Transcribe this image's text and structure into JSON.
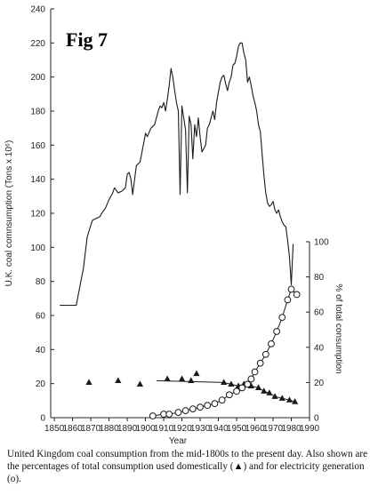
{
  "figure_label": "Fig 7",
  "caption": "United Kingdom coal consumption from the mid-1800s to the present day.  Also shown are the percentages of total consumption used domestically (▲) and for electricity generation (o).",
  "chart_data": {
    "type": "line",
    "xlabel": "Year",
    "ylabel": "U.K. coal comnsumption (Tons x 10⁶)",
    "y2label": "% of total consumption",
    "xlim": [
      1848,
      1990
    ],
    "ylim": [
      0,
      240
    ],
    "y2lim": [
      0,
      100
    ],
    "xticks": [
      1850,
      1860,
      1870,
      1880,
      1890,
      1900,
      1910,
      1920,
      1930,
      1940,
      1950,
      1960,
      1970,
      1980,
      1990
    ],
    "yticks": [
      0,
      20,
      40,
      60,
      80,
      100,
      120,
      140,
      160,
      180,
      200,
      220,
      240
    ],
    "y2ticks": [
      0,
      20,
      40,
      60,
      80,
      100
    ],
    "grid": false,
    "series": [
      {
        "marker": "line",
        "axis": "left",
        "x": [
          1853,
          1862,
          1866,
          1868,
          1870,
          1871,
          1873,
          1875,
          1876,
          1878,
          1880,
          1882,
          1883,
          1885,
          1887,
          1889,
          1890,
          1891,
          1892,
          1893,
          1895,
          1897,
          1899,
          1900,
          1901,
          1903,
          1905,
          1907,
          1908,
          1909,
          1910,
          1911,
          1912,
          1913,
          1914,
          1915,
          1916,
          1917,
          1918,
          1919,
          1920,
          1921,
          1922,
          1923,
          1924,
          1925,
          1926,
          1927,
          1928,
          1929,
          1930,
          1931,
          1932,
          1933,
          1934,
          1935,
          1936,
          1937,
          1938,
          1939,
          1940,
          1941,
          1942,
          1943,
          1944,
          1945,
          1946,
          1947,
          1948,
          1949,
          1950,
          1951,
          1952,
          1953,
          1954,
          1955,
          1956,
          1957,
          1958,
          1959,
          1960,
          1961,
          1962,
          1963,
          1964,
          1965,
          1966,
          1967,
          1968,
          1969,
          1970,
          1971,
          1972,
          1973,
          1974,
          1975,
          1976,
          1977,
          1978,
          1979,
          1980,
          1981
        ],
        "values": [
          66,
          66,
          88,
          106,
          113,
          116,
          117,
          118,
          120,
          123,
          128,
          132,
          135,
          132,
          133,
          135,
          143,
          144,
          140,
          131,
          148,
          150,
          161,
          167,
          165,
          170,
          172,
          180,
          183,
          182,
          185,
          180,
          187,
          195,
          205,
          200,
          192,
          185,
          180,
          131,
          183,
          176,
          169,
          132,
          177,
          172,
          152,
          172,
          165,
          176,
          165,
          156,
          158,
          160,
          170,
          172,
          176,
          180,
          175,
          185,
          191,
          197,
          200,
          201,
          196,
          192,
          197,
          200,
          207,
          208,
          212,
          218,
          220,
          220,
          214,
          210,
          197,
          200,
          195,
          189,
          185,
          180,
          172,
          168,
          155,
          142,
          132,
          126,
          124,
          125,
          127,
          122,
          120,
          122,
          118,
          115,
          113,
          112,
          104,
          94,
          78,
          102
        ]
      },
      {
        "marker": "triangle",
        "axis": "right",
        "x": [
          1869,
          1885,
          1897,
          1912,
          1920,
          1925,
          1928,
          1943,
          1947,
          1951,
          1954,
          1958,
          1962,
          1965,
          1968,
          1971,
          1975,
          1979,
          1982
        ],
        "values": [
          20,
          21,
          19,
          22,
          22,
          21,
          25,
          20,
          19,
          18,
          19,
          18,
          17,
          15,
          14,
          12,
          11,
          10,
          9
        ]
      },
      {
        "marker": "circle",
        "axis": "right",
        "x": [
          1904,
          1910,
          1913,
          1918,
          1922,
          1926,
          1930,
          1934,
          1938,
          1942,
          1946,
          1950,
          1953,
          1956,
          1958,
          1960,
          1963,
          1966,
          1969,
          1972,
          1975,
          1978,
          1980,
          1983
        ],
        "values": [
          1,
          2,
          2,
          3,
          4,
          5,
          6,
          7,
          8,
          10,
          13,
          15,
          17,
          19,
          22,
          26,
          31,
          36,
          42,
          49,
          57,
          67,
          73,
          70
        ]
      }
    ]
  }
}
